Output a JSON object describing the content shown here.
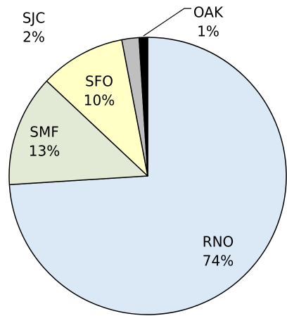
{
  "chart_data": {
    "type": "pie",
    "categories": [
      "RNO",
      "SMF",
      "SFO",
      "SJC",
      "OAK"
    ],
    "values": [
      74,
      13,
      10,
      2,
      1
    ],
    "value_labels": [
      "74%",
      "13%",
      "10%",
      "2%",
      "1%"
    ],
    "colors": [
      "#dbe9f7",
      "#e2e9d5",
      "#ffffc6",
      "#bfbfbf",
      "#000000"
    ]
  }
}
